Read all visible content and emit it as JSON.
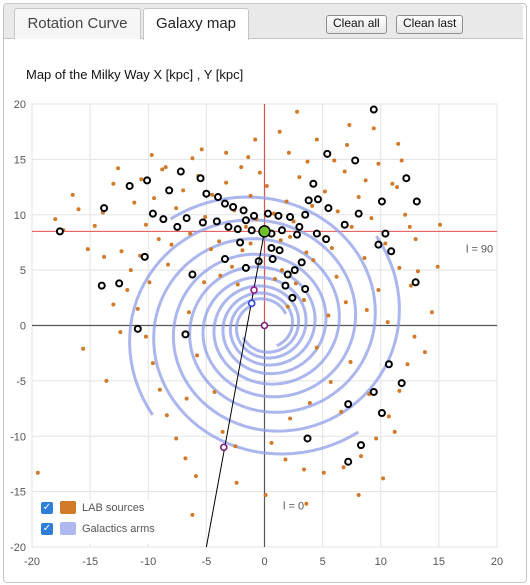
{
  "tabs": [
    {
      "label": "Rotation Curve"
    },
    {
      "label": "Galaxy map"
    }
  ],
  "buttons": {
    "clean_all": "Clean all",
    "clean_last": "Clean last"
  },
  "chart_data": {
    "type": "scatter",
    "title": "Map of the Milky Way X [kpc] , Y [kpc]",
    "xlim": [
      -20,
      20
    ],
    "ylim": [
      -20,
      20
    ],
    "x_ticks": [
      -20,
      -15,
      -10,
      -5,
      0,
      5,
      10,
      15,
      20
    ],
    "y_ticks": [
      20,
      15,
      10,
      5,
      0,
      -5,
      -10,
      -15,
      -20
    ],
    "grid": true,
    "legend_position": "bottom-left",
    "colors": {
      "lab": "#d07a2a",
      "arms": "#8f9ee8",
      "sun_line": "#e05050",
      "axis": "#555555"
    },
    "annotations": [
      {
        "text": "l = 90",
        "x": 18.5,
        "y": 6.6
      },
      {
        "text": "l = 0",
        "x": 2.5,
        "y": -16.6
      }
    ],
    "sun": {
      "x": 0,
      "y": 8.5
    },
    "galactic_center": {
      "x": 0,
      "y": 0
    },
    "line_of_sight": {
      "from": [
        0,
        8.5
      ],
      "to": [
        -5,
        -20
      ]
    },
    "line_markers": [
      {
        "x": -0.9,
        "y": 3.2,
        "color": "#9b1b8a"
      },
      {
        "x": -1.1,
        "y": 2.0,
        "color": "#3346d6"
      },
      {
        "x": -3.5,
        "y": -11.0,
        "color": "#7a1e7a"
      }
    ],
    "series": [
      {
        "name": "LAB sources",
        "points": [
          [
            -17.3,
            8.6
          ],
          [
            -16.0,
            10.5
          ],
          [
            -13.9,
            10.2
          ],
          [
            -13.0,
            12.8
          ],
          [
            -12.3,
            6.7
          ],
          [
            -11.2,
            11.1
          ],
          [
            -10.6,
            13.2
          ],
          [
            -10.2,
            9.1
          ],
          [
            -9.5,
            11.5
          ],
          [
            -8.8,
            14.1
          ],
          [
            -8.0,
            7.3
          ],
          [
            -7.6,
            10.6
          ],
          [
            -7.0,
            12.2
          ],
          [
            -6.4,
            8.3
          ],
          [
            -5.7,
            13.5
          ],
          [
            -5.1,
            9.8
          ],
          [
            -4.5,
            11.8
          ],
          [
            -3.9,
            7.6
          ],
          [
            -3.3,
            12.9
          ],
          [
            -2.6,
            10.4
          ],
          [
            -2.0,
            14.3
          ],
          [
            -1.6,
            8.9
          ],
          [
            -1.2,
            11.7
          ],
          [
            -0.7,
            9.6
          ],
          [
            0.2,
            12.6
          ],
          [
            0.8,
            10.1
          ],
          [
            1.4,
            7.7
          ],
          [
            1.9,
            11.2
          ],
          [
            2.5,
            9.4
          ],
          [
            3.0,
            13.4
          ],
          [
            3.6,
            6.6
          ],
          [
            4.1,
            10.8
          ],
          [
            4.7,
            8.2
          ],
          [
            5.2,
            12.1
          ],
          [
            5.8,
            7.0
          ],
          [
            6.3,
            10.3
          ],
          [
            6.9,
            13.9
          ],
          [
            7.5,
            8.9
          ],
          [
            8.1,
            11.6
          ],
          [
            8.6,
            6.1
          ],
          [
            9.2,
            9.7
          ],
          [
            9.8,
            14.6
          ],
          [
            10.4,
            7.4
          ],
          [
            11.0,
            12.8
          ],
          [
            11.6,
            5.2
          ],
          [
            12.1,
            10.0
          ],
          [
            12.6,
            3.6
          ],
          [
            13.0,
            7.8
          ],
          [
            -11.8,
            3.2
          ],
          [
            -10.9,
            1.5
          ],
          [
            -10.2,
            -1.0
          ],
          [
            -9.6,
            -3.4
          ],
          [
            -9.0,
            -5.8
          ],
          [
            -8.4,
            -8.1
          ],
          [
            -7.6,
            -10.2
          ],
          [
            -6.8,
            -12.0
          ],
          [
            -5.9,
            -13.6
          ],
          [
            -11.5,
            5.0
          ],
          [
            -10.7,
            6.3
          ],
          [
            -9.9,
            3.9
          ],
          [
            -9.1,
            7.8
          ],
          [
            -8.3,
            5.5
          ],
          [
            12.9,
            -1.0
          ],
          [
            12.3,
            -3.5
          ],
          [
            11.6,
            -5.9
          ],
          [
            10.7,
            -8.2
          ],
          [
            9.6,
            -10.2
          ],
          [
            8.3,
            -11.8
          ],
          [
            6.8,
            -12.8
          ],
          [
            5.1,
            -13.3
          ],
          [
            3.4,
            -13.0
          ],
          [
            1.8,
            -12.1
          ],
          [
            0.6,
            -10.6
          ],
          [
            2.2,
            -8.4
          ],
          [
            3.9,
            -7.0
          ],
          [
            5.7,
            -5.1
          ],
          [
            7.4,
            -3.3
          ],
          [
            14.4,
            1.2
          ],
          [
            13.8,
            -2.4
          ],
          [
            11.8,
            14.9
          ],
          [
            11.5,
            16.4
          ],
          [
            9.4,
            17.8
          ],
          [
            7.3,
            18.1
          ],
          [
            2.8,
            19.3
          ],
          [
            -3.3,
            15.6
          ],
          [
            -6.2,
            15.1
          ],
          [
            -8.5,
            14.3
          ],
          [
            -2.8,
            5.3
          ],
          [
            -1.9,
            6.8
          ],
          [
            1.5,
            5.0
          ],
          [
            2.7,
            3.8
          ],
          [
            3.4,
            2.3
          ],
          [
            4.2,
            5.9
          ],
          [
            -18.0,
            9.6
          ],
          [
            -16.5,
            11.8
          ],
          [
            -14.6,
            9.0
          ],
          [
            -19.5,
            -13.3
          ],
          [
            -3.6,
            -9.6
          ],
          [
            -2.5,
            -10.9
          ],
          [
            -12.4,
            -0.6
          ],
          [
            -13.0,
            1.9
          ],
          [
            9.8,
            3.2
          ],
          [
            10.6,
            0.3
          ],
          [
            11.2,
            -9.6
          ],
          [
            13.2,
            4.9
          ],
          [
            12.5,
            8.9
          ],
          [
            11.4,
            12.5
          ],
          [
            7.1,
            16.3
          ],
          [
            6.2,
            4.4
          ],
          [
            5.5,
            0.9
          ],
          [
            4.5,
            -2.0
          ],
          [
            -4.3,
            -6.0
          ],
          [
            -6.7,
            -6.6
          ],
          [
            -5.8,
            -2.7
          ],
          [
            -6.5,
            1.2
          ],
          [
            -5.2,
            3.9
          ],
          [
            -3.8,
            4.5
          ],
          [
            -4.6,
            6.9
          ],
          [
            -3.1,
            8.9
          ],
          [
            -0.4,
            13.8
          ],
          [
            -1.4,
            15.2
          ],
          [
            2.1,
            15.6
          ],
          [
            4.5,
            16.8
          ],
          [
            1.3,
            17.5
          ],
          [
            -13.6,
            -5.0
          ],
          [
            -15.6,
            -2.1
          ],
          [
            -13.8,
            6.2
          ],
          [
            -15.2,
            6.9
          ],
          [
            14.9,
            5.3
          ],
          [
            15.1,
            9.1
          ],
          [
            -2.4,
            -14.2
          ],
          [
            8.1,
            -15.3
          ],
          [
            10.2,
            -13.8
          ],
          [
            3.6,
            -16.1
          ],
          [
            0.1,
            -15.3
          ],
          [
            -6.2,
            -17.1
          ],
          [
            9.0,
            -6.2
          ],
          [
            6.6,
            -7.8
          ],
          [
            8.8,
            1.4
          ],
          [
            7.0,
            2.1
          ],
          [
            2.0,
            1.7
          ],
          [
            0.9,
            4.2
          ],
          [
            -1.2,
            7.4
          ],
          [
            3.7,
            14.8
          ],
          [
            6.0,
            14.9
          ],
          [
            8.7,
            13.1
          ],
          [
            -5.4,
            15.9
          ],
          [
            -9.7,
            15.4
          ],
          [
            -12.6,
            14.2
          ],
          [
            -0.8,
            16.8
          ],
          [
            2.2,
            8.0
          ],
          [
            -2.3,
            3.7
          ]
        ]
      },
      {
        "name": "Galactics arms",
        "description": "four logarithmic spiral arms",
        "arms": [
          {
            "start_deg": 210,
            "end_deg": 1030
          },
          {
            "start_deg": 30,
            "end_deg": 850
          },
          {
            "start_deg": 120,
            "end_deg": 940
          },
          {
            "start_deg": 300,
            "end_deg": 1120
          }
        ]
      },
      {
        "name": "Observed points",
        "points": [
          [
            -17.6,
            8.5
          ],
          [
            -13.8,
            10.6
          ],
          [
            -11.6,
            12.6
          ],
          [
            -10.1,
            13.1
          ],
          [
            -8.2,
            12.2
          ],
          [
            -7.2,
            13.9
          ],
          [
            -5.5,
            13.3
          ],
          [
            -5.0,
            11.9
          ],
          [
            -4.0,
            11.6
          ],
          [
            -3.4,
            11.0
          ],
          [
            -2.7,
            10.7
          ],
          [
            -1.8,
            10.4
          ],
          [
            -0.9,
            9.9
          ],
          [
            0.3,
            10.1
          ],
          [
            1.2,
            9.9
          ],
          [
            2.2,
            9.8
          ],
          [
            3.5,
            10.0
          ],
          [
            4.6,
            11.4
          ],
          [
            5.5,
            10.6
          ],
          [
            6.9,
            9.1
          ],
          [
            8.1,
            10.1
          ],
          [
            -9.6,
            10.1
          ],
          [
            -8.7,
            9.6
          ],
          [
            -7.5,
            8.9
          ],
          [
            -6.7,
            9.7
          ],
          [
            -5.3,
            9.3
          ],
          [
            -4.1,
            9.4
          ],
          [
            -3.1,
            8.9
          ],
          [
            -2.3,
            8.7
          ],
          [
            -1.1,
            8.6
          ],
          [
            0.6,
            8.3
          ],
          [
            1.5,
            8.6
          ],
          [
            3.0,
            8.9
          ],
          [
            4.5,
            8.3
          ],
          [
            5.3,
            7.8
          ],
          [
            -10.3,
            6.2
          ],
          [
            -12.5,
            3.8
          ],
          [
            -14.0,
            3.6
          ],
          [
            -10.9,
            -0.3
          ],
          [
            -3.4,
            6.0
          ],
          [
            -1.6,
            5.2
          ],
          [
            -0.5,
            5.8
          ],
          [
            0.7,
            6.0
          ],
          [
            1.3,
            6.8
          ],
          [
            2.0,
            4.6
          ],
          [
            2.6,
            5.0
          ],
          [
            3.2,
            5.7
          ],
          [
            1.8,
            3.6
          ],
          [
            2.4,
            2.5
          ],
          [
            3.5,
            3.3
          ],
          [
            2.8,
            8.2
          ],
          [
            3.8,
            11.3
          ],
          [
            4.2,
            12.8
          ],
          [
            5.4,
            15.5
          ],
          [
            7.8,
            14.9
          ],
          [
            9.4,
            19.5
          ],
          [
            10.1,
            11.2
          ],
          [
            10.4,
            8.3
          ],
          [
            10.9,
            6.7
          ],
          [
            9.8,
            7.3
          ],
          [
            12.2,
            13.3
          ],
          [
            13.1,
            11.2
          ],
          [
            13.0,
            3.9
          ],
          [
            10.7,
            -3.5
          ],
          [
            11.8,
            -5.2
          ],
          [
            9.4,
            -6.0
          ],
          [
            7.2,
            -7.1
          ],
          [
            10.1,
            -7.9
          ],
          [
            8.3,
            -10.8
          ],
          [
            7.2,
            -12.3
          ],
          [
            3.7,
            -10.2
          ],
          [
            -6.8,
            -0.8
          ],
          [
            -6.2,
            4.6
          ],
          [
            -2.1,
            7.5
          ],
          [
            -1.6,
            9.5
          ],
          [
            0.6,
            7.0
          ]
        ]
      }
    ]
  },
  "legend": [
    {
      "label": "LAB sources",
      "color": "#d07a2a",
      "checked": true
    },
    {
      "label": "Galactics arms",
      "color": "#aeb8f0",
      "checked": true
    }
  ]
}
